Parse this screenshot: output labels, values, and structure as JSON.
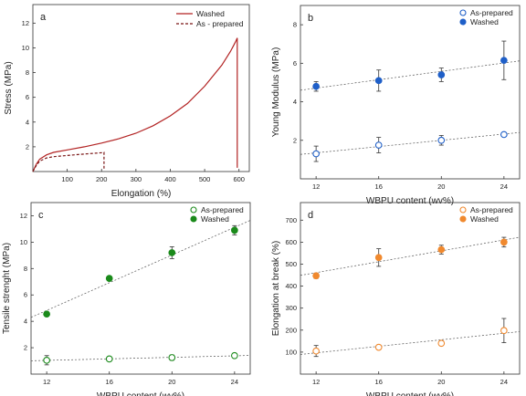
{
  "colors": {
    "washed_a": "#b22222",
    "asprep_a": "#7a1515",
    "blue": "#1f5fc8",
    "green": "#1a8a1a",
    "orange": "#f0892e",
    "trend": "#555555"
  },
  "chart_data": [
    {
      "panel": "a",
      "type": "line",
      "xlabel": "Elongation (%)",
      "ylabel": "Stress (MPa)",
      "xlim": [
        0,
        630
      ],
      "ylim": [
        0,
        13.5
      ],
      "xticks": [
        100,
        200,
        300,
        400,
        500,
        600
      ],
      "yticks": [
        2,
        4,
        6,
        8,
        10,
        12
      ],
      "legend_position": "top-right",
      "series": [
        {
          "name": "Washed",
          "style": "solid",
          "x": [
            0,
            10,
            20,
            40,
            60,
            100,
            150,
            200,
            250,
            300,
            350,
            400,
            450,
            500,
            550,
            575,
            590,
            595,
            595
          ],
          "y": [
            0,
            0.6,
            1.0,
            1.35,
            1.55,
            1.75,
            2.0,
            2.3,
            2.65,
            3.1,
            3.7,
            4.5,
            5.5,
            6.9,
            8.6,
            9.7,
            10.5,
            10.8,
            0.3
          ]
        },
        {
          "name": "As - prepared",
          "style": "dashed",
          "x": [
            0,
            10,
            20,
            40,
            60,
            100,
            150,
            200,
            207,
            207
          ],
          "y": [
            0,
            0.5,
            0.85,
            1.1,
            1.2,
            1.3,
            1.42,
            1.52,
            1.55,
            0.2
          ]
        }
      ]
    },
    {
      "panel": "b",
      "type": "scatter",
      "xlabel": "WBPU content (wv%)",
      "ylabel": "Young Modulus (MPa)",
      "xlim": [
        11,
        25
      ],
      "ylim": [
        0,
        9
      ],
      "xticks": [
        12,
        16,
        20,
        24
      ],
      "yticks": [
        2,
        4,
        6,
        8
      ],
      "legend_position": "top-right",
      "trendlines": true,
      "series": [
        {
          "name": "As-prepared",
          "marker": "open",
          "x": [
            12,
            16,
            20,
            24
          ],
          "y": [
            1.3,
            1.75,
            2.0,
            2.3
          ],
          "err": [
            0.4,
            0.4,
            0.25,
            0.1
          ]
        },
        {
          "name": "Washed",
          "marker": "filled",
          "x": [
            12,
            16,
            20,
            24
          ],
          "y": [
            4.8,
            5.1,
            5.4,
            6.15
          ],
          "err": [
            0.25,
            0.55,
            0.35,
            1.0
          ]
        }
      ]
    },
    {
      "panel": "c",
      "type": "scatter",
      "xlabel": "WBPU content (wv%)",
      "ylabel": "Tensile strenght (MPa)",
      "xlim": [
        11,
        25
      ],
      "ylim": [
        0,
        13
      ],
      "xticks": [
        12,
        16,
        20,
        24
      ],
      "yticks": [
        2,
        4,
        6,
        8,
        10,
        12
      ],
      "legend_position": "top-right",
      "trendlines": true,
      "series": [
        {
          "name": "As-prepared",
          "marker": "open",
          "x": [
            12,
            16,
            20,
            24
          ],
          "y": [
            1.05,
            1.15,
            1.25,
            1.4
          ],
          "err": [
            0.35,
            0.1,
            0.2,
            0.15
          ]
        },
        {
          "name": "Washed",
          "marker": "filled",
          "x": [
            12,
            16,
            20,
            24
          ],
          "y": [
            4.55,
            7.25,
            9.2,
            10.9
          ],
          "err": [
            0.15,
            0.15,
            0.45,
            0.35
          ]
        }
      ]
    },
    {
      "panel": "d",
      "type": "scatter",
      "xlabel": "WBPU content (wv%)",
      "ylabel": "Elongation at break (%)",
      "xlim": [
        11,
        25
      ],
      "ylim": [
        0,
        780
      ],
      "xticks": [
        12,
        16,
        20,
        24
      ],
      "yticks": [
        100,
        200,
        300,
        400,
        500,
        600,
        700
      ],
      "legend_position": "top-right",
      "trendlines": true,
      "series": [
        {
          "name": "As-prepared",
          "marker": "open",
          "x": [
            12,
            16,
            20,
            24
          ],
          "y": [
            105,
            122,
            140,
            198
          ],
          "err": [
            25,
            10,
            8,
            55
          ]
        },
        {
          "name": "Washed",
          "marker": "filled",
          "x": [
            12,
            16,
            20,
            24
          ],
          "y": [
            447,
            530,
            566,
            600
          ],
          "err": [
            12,
            40,
            20,
            22
          ]
        }
      ]
    }
  ]
}
